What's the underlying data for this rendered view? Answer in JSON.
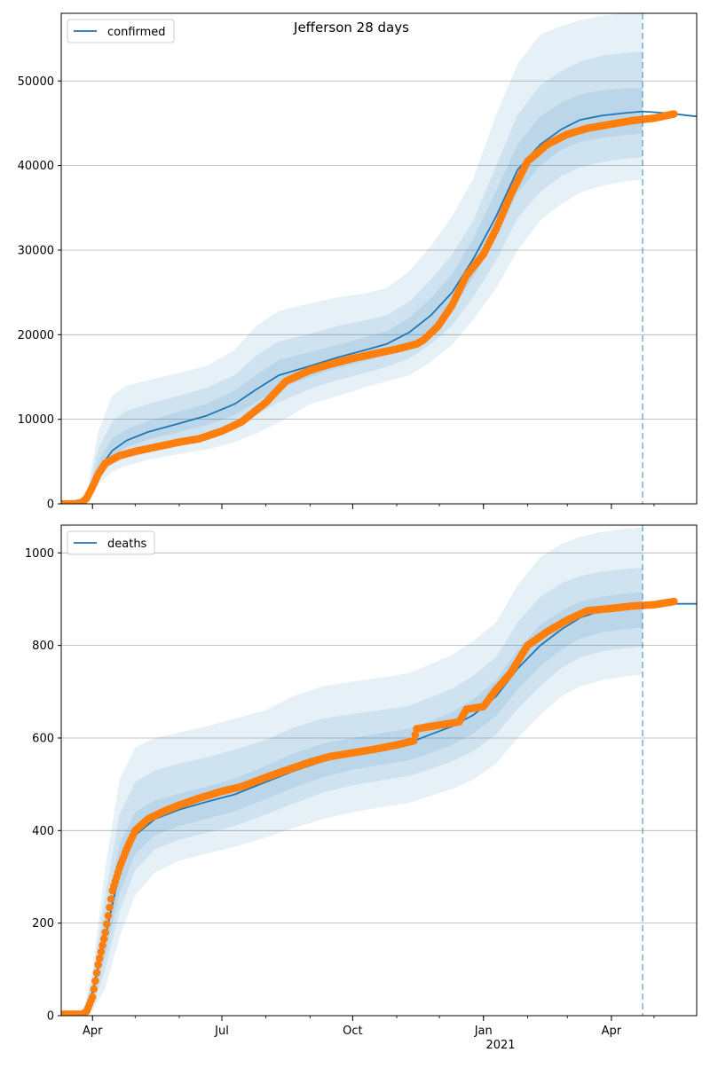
{
  "title": "Jefferson 28 days",
  "x_tick_labels": [
    "Apr",
    "Jul",
    "Oct",
    "Jan",
    "Apr"
  ],
  "x_year_label": "2021",
  "colors": {
    "model": "#1f77b4",
    "observed": "#ff7f0e",
    "band": "#1f77b4",
    "grid": "#b0b0b0",
    "forecast_line": "#1f77b4"
  },
  "forecast_date": "2021-04-23",
  "chart_data": [
    {
      "type": "line",
      "legend": "confirmed",
      "legend_position": "top-left",
      "grid": "y",
      "x_range": [
        "2020-03-10",
        "2021-05-31"
      ],
      "ylim": [
        0,
        58000
      ],
      "y_ticks": [
        0,
        10000,
        20000,
        30000,
        40000,
        50000
      ],
      "series": [
        {
          "name": "confirmed",
          "kind": "model",
          "x": [
            "2020-03-10",
            "2020-03-20",
            "2020-03-28",
            "2020-04-05",
            "2020-04-15",
            "2020-04-25",
            "2020-05-10",
            "2020-06-01",
            "2020-06-20",
            "2020-07-10",
            "2020-07-25",
            "2020-08-10",
            "2020-09-01",
            "2020-09-20",
            "2020-10-10",
            "2020-10-25",
            "2020-11-10",
            "2020-11-25",
            "2020-12-10",
            "2020-12-25",
            "2021-01-10",
            "2021-01-25",
            "2021-02-10",
            "2021-02-25",
            "2021-03-10",
            "2021-03-25",
            "2021-04-10",
            "2021-04-23",
            "2021-05-10",
            "2021-05-31"
          ],
          "values": [
            0,
            0,
            600,
            4000,
            6300,
            7500,
            8500,
            9500,
            10400,
            11800,
            13500,
            15200,
            16300,
            17300,
            18200,
            18900,
            20300,
            22300,
            25000,
            29000,
            34000,
            39500,
            42500,
            44300,
            45400,
            45900,
            46200,
            46400,
            46200,
            45800
          ]
        },
        {
          "name": "observed",
          "kind": "observed",
          "x": [
            "2020-03-10",
            "2020-03-20",
            "2020-03-25",
            "2020-03-28",
            "2020-04-01",
            "2020-04-05",
            "2020-04-10",
            "2020-04-20",
            "2020-05-01",
            "2020-05-15",
            "2020-06-01",
            "2020-06-15",
            "2020-07-01",
            "2020-07-15",
            "2020-08-01",
            "2020-08-15",
            "2020-09-01",
            "2020-09-15",
            "2020-10-01",
            "2020-10-15",
            "2020-11-01",
            "2020-11-15",
            "2020-11-20",
            "2020-11-30",
            "2020-12-10",
            "2020-12-20",
            "2021-01-01",
            "2021-01-10",
            "2021-01-20",
            "2021-02-01",
            "2021-02-15",
            "2021-03-01",
            "2021-03-15",
            "2021-04-01",
            "2021-04-15",
            "2021-05-01",
            "2021-05-15"
          ],
          "values": [
            0,
            0,
            200,
            700,
            2000,
            3500,
            4800,
            5700,
            6200,
            6700,
            7300,
            7700,
            8600,
            9700,
            12000,
            14500,
            15800,
            16500,
            17200,
            17700,
            18300,
            18900,
            19400,
            21000,
            23500,
            27000,
            29500,
            32500,
            36500,
            40500,
            42500,
            43700,
            44400,
            44900,
            45300,
            45600,
            46100
          ]
        }
      ],
      "bands": [
        {
          "name": "outer",
          "x": [
            "2020-03-10",
            "2020-03-20",
            "2020-03-28",
            "2020-04-05",
            "2020-04-15",
            "2020-04-25",
            "2020-05-10",
            "2020-06-01",
            "2020-06-20",
            "2020-07-10",
            "2020-07-25",
            "2020-08-10",
            "2020-09-01",
            "2020-09-20",
            "2020-10-10",
            "2020-10-25",
            "2020-11-10",
            "2020-11-25",
            "2020-12-10",
            "2020-12-25",
            "2021-01-10",
            "2021-01-25",
            "2021-02-10",
            "2021-02-25",
            "2021-03-10",
            "2021-03-25",
            "2021-04-10",
            "2021-04-23"
          ],
          "lower": [
            0,
            0,
            150,
            2300,
            3800,
            4500,
            5200,
            5900,
            6400,
            7300,
            8300,
            9600,
            11800,
            12700,
            13800,
            14500,
            15200,
            16800,
            18800,
            21800,
            25500,
            30000,
            33500,
            35500,
            36800,
            37600,
            38100,
            38300
          ],
          "upper": [
            0,
            0,
            1300,
            8500,
            12800,
            14000,
            14600,
            15500,
            16300,
            18200,
            21000,
            22800,
            23700,
            24400,
            24900,
            25500,
            27500,
            30500,
            34000,
            38500,
            46000,
            52000,
            55500,
            56500,
            57200,
            57700,
            58000,
            58200
          ]
        },
        {
          "name": "middle",
          "x": [
            "2020-03-10",
            "2020-03-20",
            "2020-03-28",
            "2020-04-05",
            "2020-04-15",
            "2020-04-25",
            "2020-05-10",
            "2020-06-01",
            "2020-06-20",
            "2020-07-10",
            "2020-07-25",
            "2020-08-10",
            "2020-09-01",
            "2020-09-20",
            "2020-10-10",
            "2020-10-25",
            "2020-11-10",
            "2020-11-25",
            "2020-12-10",
            "2020-12-25",
            "2021-01-10",
            "2021-01-25",
            "2021-02-10",
            "2021-02-25",
            "2021-03-10",
            "2021-03-25",
            "2021-04-10",
            "2021-04-23"
          ],
          "lower": [
            0,
            0,
            300,
            3000,
            4900,
            5900,
            6700,
            7400,
            8100,
            9200,
            10500,
            12000,
            13600,
            14600,
            15500,
            16200,
            17200,
            18900,
            21100,
            24500,
            28800,
            33800,
            36900,
            38800,
            39800,
            40400,
            40800,
            41000
          ],
          "upper": [
            0,
            0,
            1000,
            6500,
            9800,
            11000,
            11800,
            12800,
            13700,
            15200,
            17500,
            19200,
            20100,
            21000,
            21700,
            22300,
            23900,
            26500,
            29500,
            33500,
            40000,
            46000,
            49500,
            51200,
            52300,
            53000,
            53300,
            53500
          ]
        },
        {
          "name": "inner",
          "x": [
            "2020-03-10",
            "2020-03-20",
            "2020-03-28",
            "2020-04-05",
            "2020-04-15",
            "2020-04-25",
            "2020-05-10",
            "2020-06-01",
            "2020-06-20",
            "2020-07-10",
            "2020-07-25",
            "2020-08-10",
            "2020-09-01",
            "2020-09-20",
            "2020-10-10",
            "2020-10-25",
            "2020-11-10",
            "2020-11-25",
            "2020-12-10",
            "2020-12-25",
            "2021-01-10",
            "2021-01-25",
            "2021-02-10",
            "2021-02-25",
            "2021-03-10",
            "2021-03-25",
            "2021-04-10",
            "2021-04-23"
          ],
          "lower": [
            0,
            0,
            450,
            3500,
            5600,
            6700,
            7600,
            8500,
            9300,
            10500,
            12000,
            13600,
            15000,
            16000,
            16900,
            17600,
            18800,
            20600,
            23000,
            26800,
            31500,
            36800,
            40000,
            41900,
            42800,
            43300,
            43600,
            43800
          ],
          "upper": [
            0,
            0,
            800,
            5000,
            7800,
            8800,
            9800,
            10900,
            11800,
            13400,
            15200,
            17000,
            17900,
            18800,
            19700,
            20400,
            22000,
            24300,
            27200,
            31400,
            37000,
            42500,
            45800,
            47500,
            48400,
            48900,
            49100,
            49200
          ]
        }
      ]
    },
    {
      "type": "line",
      "legend": "deaths",
      "legend_position": "top-left",
      "grid": "y",
      "x_range": [
        "2020-03-10",
        "2021-05-31"
      ],
      "ylim": [
        0,
        1060
      ],
      "y_ticks": [
        0,
        200,
        400,
        600,
        800,
        1000
      ],
      "series": [
        {
          "name": "deaths",
          "kind": "model",
          "x": [
            "2020-03-10",
            "2020-03-25",
            "2020-04-01",
            "2020-04-10",
            "2020-04-20",
            "2020-05-01",
            "2020-05-15",
            "2020-06-01",
            "2020-06-20",
            "2020-07-10",
            "2020-08-01",
            "2020-08-20",
            "2020-09-10",
            "2020-10-01",
            "2020-10-20",
            "2020-11-10",
            "2020-11-25",
            "2020-12-10",
            "2020-12-25",
            "2021-01-10",
            "2021-01-25",
            "2021-02-10",
            "2021-02-25",
            "2021-03-10",
            "2021-03-25",
            "2021-04-10",
            "2021-04-23",
            "2021-05-10",
            "2021-05-31"
          ],
          "values": [
            0,
            0,
            50,
            170,
            310,
            390,
            425,
            445,
            462,
            478,
            505,
            528,
            550,
            567,
            578,
            590,
            608,
            625,
            650,
            690,
            750,
            800,
            835,
            860,
            875,
            882,
            885,
            890,
            890
          ]
        },
        {
          "name": "observed",
          "kind": "observed",
          "x": [
            "2020-03-10",
            "2020-03-25",
            "2020-03-28",
            "2020-04-01",
            "2020-04-05",
            "2020-04-10",
            "2020-04-15",
            "2020-04-20",
            "2020-04-25",
            "2020-05-01",
            "2020-05-10",
            "2020-05-20",
            "2020-06-01",
            "2020-06-15",
            "2020-07-01",
            "2020-07-15",
            "2020-08-01",
            "2020-08-15",
            "2020-09-01",
            "2020-09-15",
            "2020-10-01",
            "2020-10-15",
            "2020-11-01",
            "2020-11-13",
            "2020-11-15",
            "2020-12-01",
            "2020-12-15",
            "2020-12-20",
            "2021-01-01",
            "2021-01-10",
            "2021-01-20",
            "2021-02-01",
            "2021-02-15",
            "2021-03-01",
            "2021-03-15",
            "2021-04-01",
            "2021-04-15",
            "2021-05-01",
            "2021-05-15"
          ],
          "values": [
            3,
            3,
            10,
            40,
            110,
            180,
            270,
            320,
            360,
            400,
            425,
            440,
            455,
            470,
            485,
            495,
            515,
            530,
            548,
            560,
            568,
            575,
            585,
            594,
            620,
            628,
            635,
            662,
            668,
            705,
            740,
            800,
            830,
            855,
            875,
            880,
            885,
            888,
            895
          ]
        }
      ],
      "bands": [
        {
          "name": "outer",
          "x": [
            "2020-03-10",
            "2020-03-25",
            "2020-04-01",
            "2020-04-10",
            "2020-04-20",
            "2020-05-01",
            "2020-05-15",
            "2020-06-01",
            "2020-06-20",
            "2020-07-10",
            "2020-08-01",
            "2020-08-20",
            "2020-09-10",
            "2020-10-01",
            "2020-10-20",
            "2020-11-10",
            "2020-11-25",
            "2020-12-10",
            "2020-12-25",
            "2021-01-10",
            "2021-01-25",
            "2021-02-10",
            "2021-02-25",
            "2021-03-10",
            "2021-03-25",
            "2021-04-10",
            "2021-04-23"
          ],
          "lower": [
            0,
            0,
            10,
            60,
            170,
            260,
            310,
            335,
            350,
            365,
            385,
            405,
            425,
            440,
            450,
            460,
            475,
            490,
            510,
            545,
            600,
            650,
            690,
            712,
            725,
            733,
            738
          ],
          "upper": [
            0,
            0,
            100,
            320,
            510,
            580,
            600,
            612,
            625,
            642,
            660,
            690,
            712,
            722,
            730,
            740,
            760,
            780,
            810,
            850,
            930,
            990,
            1020,
            1035,
            1045,
            1052,
            1055
          ]
        },
        {
          "name": "middle",
          "x": [
            "2020-03-10",
            "2020-03-25",
            "2020-04-01",
            "2020-04-10",
            "2020-04-20",
            "2020-05-01",
            "2020-05-15",
            "2020-06-01",
            "2020-06-20",
            "2020-07-10",
            "2020-08-01",
            "2020-08-20",
            "2020-09-10",
            "2020-10-01",
            "2020-10-20",
            "2020-11-10",
            "2020-11-25",
            "2020-12-10",
            "2020-12-25",
            "2021-01-10",
            "2021-01-25",
            "2021-02-10",
            "2021-02-25",
            "2021-03-10",
            "2021-03-25",
            "2021-04-10",
            "2021-04-23"
          ],
          "lower": [
            0,
            0,
            20,
            100,
            225,
            315,
            360,
            380,
            395,
            410,
            435,
            458,
            482,
            498,
            508,
            518,
            533,
            550,
            572,
            608,
            663,
            712,
            752,
            774,
            787,
            794,
            798
          ],
          "upper": [
            0,
            0,
            80,
            260,
            435,
            505,
            530,
            545,
            558,
            575,
            596,
            622,
            642,
            652,
            660,
            670,
            688,
            706,
            735,
            775,
            850,
            905,
            935,
            950,
            960,
            965,
            968
          ]
        },
        {
          "name": "inner",
          "x": [
            "2020-03-10",
            "2020-03-25",
            "2020-04-01",
            "2020-04-10",
            "2020-04-20",
            "2020-05-01",
            "2020-05-15",
            "2020-06-01",
            "2020-06-20",
            "2020-07-10",
            "2020-08-01",
            "2020-08-20",
            "2020-09-10",
            "2020-10-01",
            "2020-10-20",
            "2020-11-10",
            "2020-11-25",
            "2020-12-10",
            "2020-12-25",
            "2021-01-10",
            "2021-01-25",
            "2021-02-10",
            "2021-02-25",
            "2021-03-10",
            "2021-03-25",
            "2021-04-10",
            "2021-04-23"
          ],
          "lower": [
            0,
            0,
            30,
            130,
            265,
            350,
            390,
            410,
            425,
            442,
            468,
            492,
            515,
            532,
            542,
            552,
            568,
            585,
            610,
            648,
            705,
            755,
            792,
            815,
            828,
            835,
            838
          ],
          "upper": [
            0,
            0,
            65,
            215,
            370,
            440,
            465,
            480,
            495,
            512,
            540,
            566,
            588,
            600,
            610,
            620,
            638,
            656,
            684,
            725,
            790,
            845,
            875,
            895,
            905,
            912,
            915
          ]
        }
      ]
    }
  ]
}
